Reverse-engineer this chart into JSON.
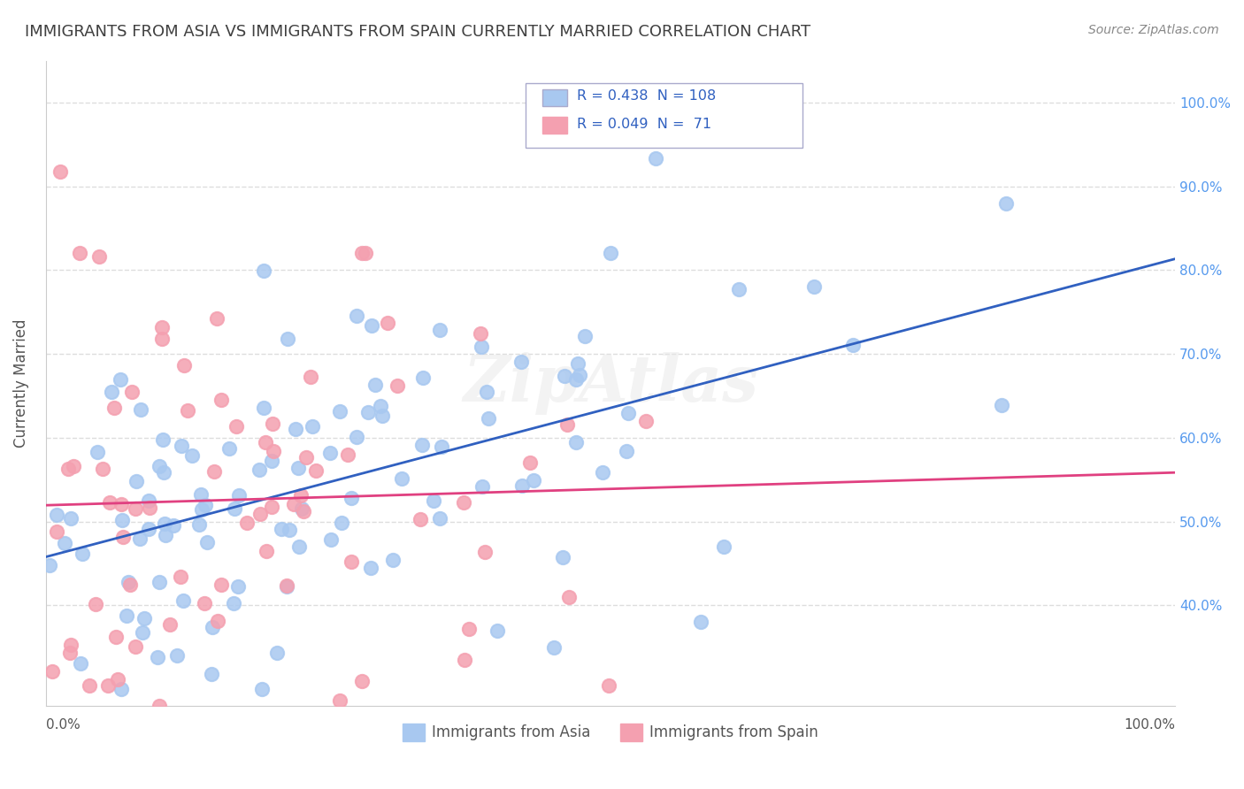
{
  "title": "IMMIGRANTS FROM ASIA VS IMMIGRANTS FROM SPAIN CURRENTLY MARRIED CORRELATION CHART",
  "source": "Source: ZipAtlas.com",
  "ylabel": "Currently Married",
  "ytick_vals": [
    0.4,
    0.5,
    0.6,
    0.7,
    0.8,
    0.9,
    1.0
  ],
  "ytick_labels": [
    "40.0%",
    "50.0%",
    "60.0%",
    "70.0%",
    "80.0%",
    "90.0%",
    "100.0%"
  ],
  "xlim": [
    0.0,
    1.0
  ],
  "ylim": [
    0.28,
    1.05
  ],
  "legend_r_asia": "0.438",
  "legend_n_asia": "108",
  "legend_r_spain": "0.049",
  "legend_n_spain": "71",
  "color_asia": "#a8c8f0",
  "color_spain": "#f4a0b0",
  "line_color_asia": "#3060c0",
  "line_color_spain": "#e04080",
  "legend_text_color": "#3060c0",
  "title_color": "#404040",
  "watermark": "ZipAtlas",
  "background_color": "#ffffff",
  "grid_color": "#dddddd"
}
